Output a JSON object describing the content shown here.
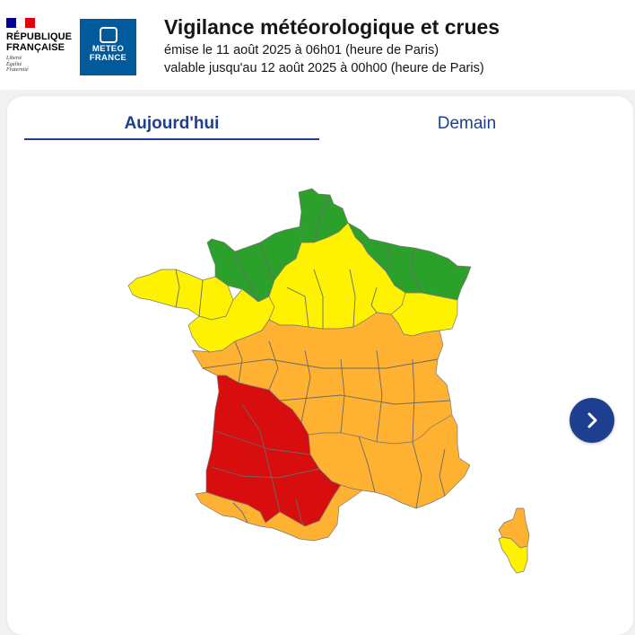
{
  "header": {
    "republique_logo": {
      "name": "RÉPUBLIQUE FRANÇAISE",
      "motto": [
        "Liberté",
        "Égalité",
        "Fraternité"
      ]
    },
    "meteo_logo": {
      "line1": "METEO",
      "line2": "FRANCE"
    },
    "title": "Vigilance météorologique et crues",
    "issued": "émise le 11 août 2025 à 06h01 (heure de Paris)",
    "valid_until": "valable jusqu'au 12 août 2025 à 00h00 (heure de Paris)"
  },
  "tabs": [
    {
      "label": "Aujourd'hui",
      "selected": true
    },
    {
      "label": "Demain",
      "selected": false
    }
  ],
  "map": {
    "region": "France métropolitaine",
    "level_colors": {
      "vert": "#2ba12b",
      "jaune": "#fff200",
      "orange": "#ffb131",
      "rouge": "#d80d0d"
    },
    "zones": [
      {
        "area": "Nord",
        "level": "vert"
      },
      {
        "area": "Nord-Ouest",
        "level": "vert"
      },
      {
        "area": "Nord-Est",
        "level": "vert"
      },
      {
        "area": "Bretagne",
        "level": "jaune"
      },
      {
        "area": "Pays de la Loire",
        "level": "jaune"
      },
      {
        "area": "Centre-Nord",
        "level": "jaune"
      },
      {
        "area": "Est",
        "level": "jaune"
      },
      {
        "area": "Centre",
        "level": "orange"
      },
      {
        "area": "Sud-Est",
        "level": "orange"
      },
      {
        "area": "Sud-Ouest intérieur",
        "level": "rouge"
      },
      {
        "area": "Pyrénées",
        "level": "orange"
      },
      {
        "area": "Haute-Corse",
        "level": "orange"
      },
      {
        "area": "Corse-du-Sud",
        "level": "jaune"
      }
    ]
  },
  "next_button": {
    "icon": "chevron-right-icon"
  }
}
